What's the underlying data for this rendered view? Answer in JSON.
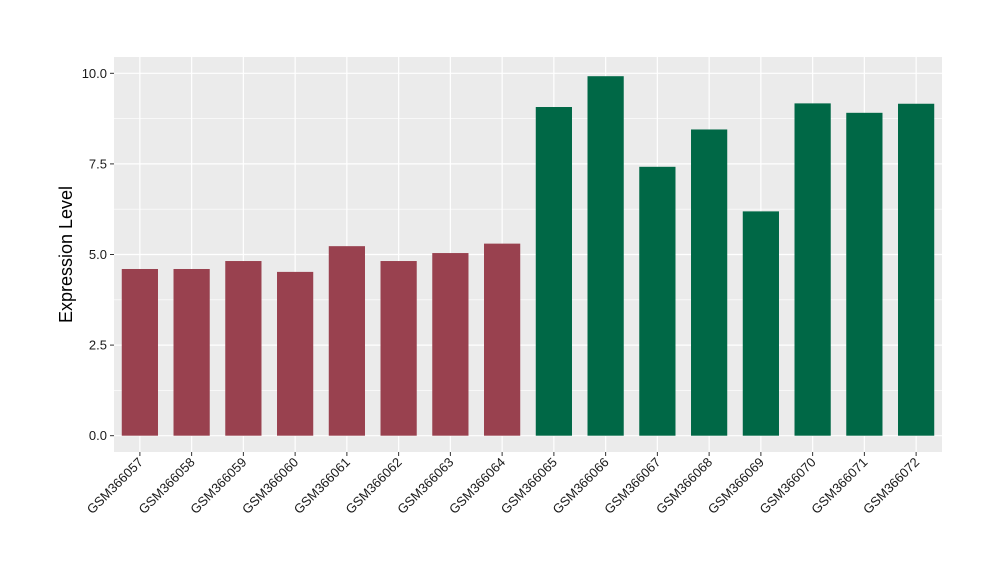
{
  "chart_data": {
    "type": "bar",
    "title": "",
    "xlabel": "",
    "ylabel": "Expression Level",
    "ylim": [
      -0.45,
      10.45
    ],
    "yticks": [
      0.0,
      2.5,
      5.0,
      7.5,
      10.0
    ],
    "ytick_labels": [
      "0.0",
      "2.5",
      "5.0",
      "7.5",
      "10.0"
    ],
    "grid": true,
    "legend": "none",
    "categories": [
      "GSM366057",
      "GSM366058",
      "GSM366059",
      "GSM366060",
      "GSM366061",
      "GSM366062",
      "GSM366063",
      "GSM366064",
      "GSM366065",
      "GSM366066",
      "GSM366067",
      "GSM366068",
      "GSM366069",
      "GSM366070",
      "GSM366071",
      "GSM366072"
    ],
    "values": [
      4.6,
      4.6,
      4.82,
      4.52,
      5.23,
      4.82,
      5.04,
      5.3,
      9.07,
      9.92,
      7.42,
      8.45,
      6.19,
      9.17,
      8.91,
      9.16
    ],
    "groups": [
      0,
      0,
      0,
      0,
      0,
      0,
      0,
      0,
      1,
      1,
      1,
      1,
      1,
      1,
      1,
      1
    ],
    "colors": {
      "group_0": "#99414f",
      "group_1": "#006846",
      "panel_background": "#ebebeb",
      "grid": "#ffffff"
    }
  }
}
